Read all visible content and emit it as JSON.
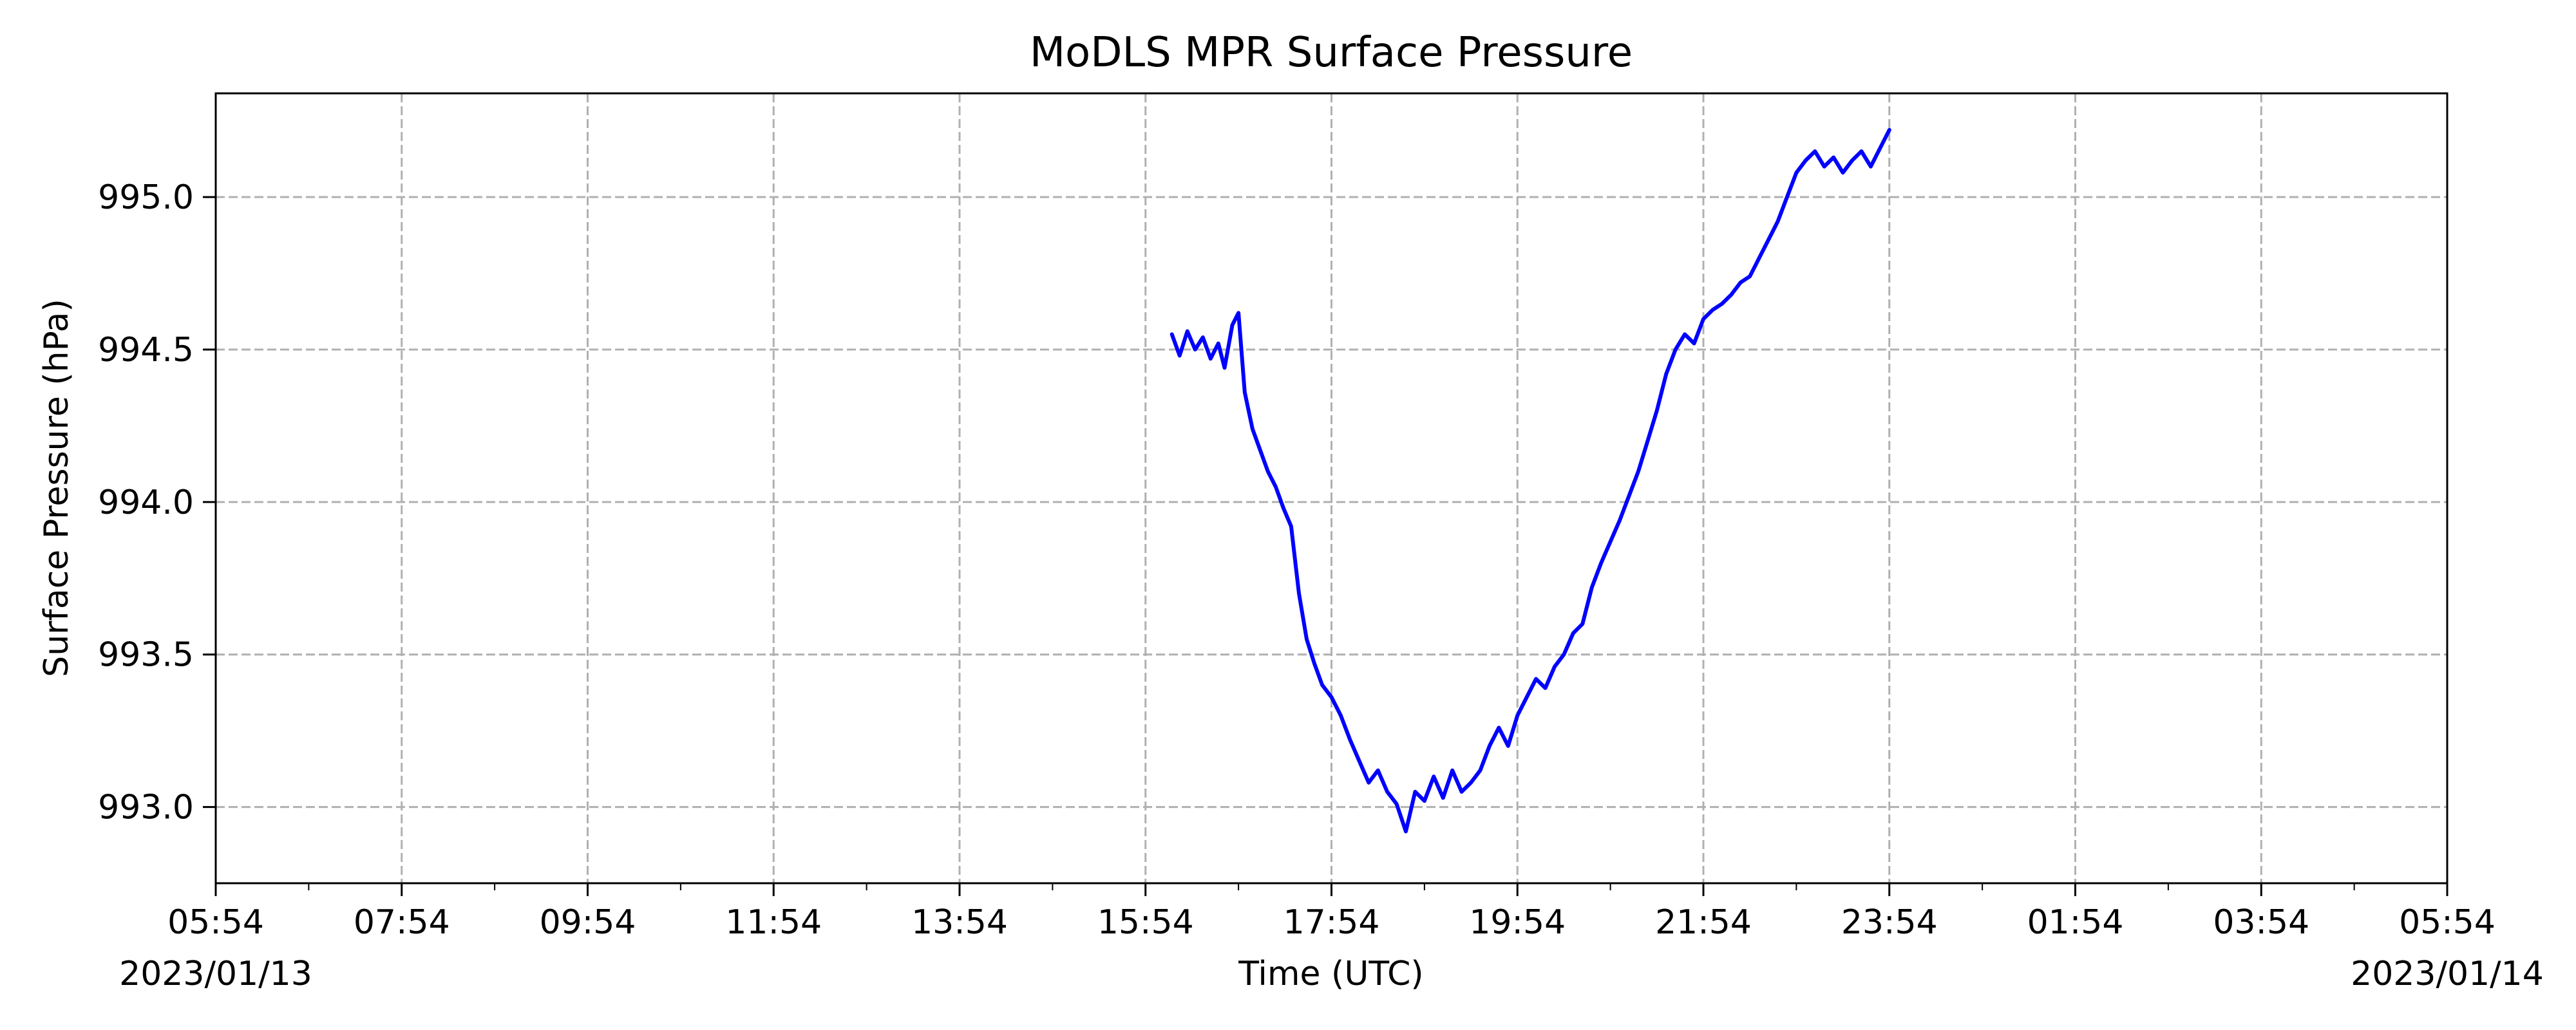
{
  "chart_data": {
    "type": "line",
    "title": "MoDLS MPR Surface Pressure",
    "xlabel": "Time (UTC)",
    "ylabel": "Surface Pressure (hPa)",
    "x_ticks": [
      "05:54",
      "07:54",
      "09:54",
      "11:54",
      "13:54",
      "15:54",
      "17:54",
      "19:54",
      "21:54",
      "23:54",
      "01:54",
      "03:54",
      "05:54"
    ],
    "x_date_labels": {
      "start": "2023/01/13",
      "end": "2023/01/14"
    },
    "xlim": [
      "2023-01-13T05:54",
      "2023-01-14T05:54"
    ],
    "y_ticks": [
      "993.0",
      "993.5",
      "994.0",
      "994.5",
      "995.0"
    ],
    "ylim": [
      992.75,
      995.34
    ],
    "grid": true,
    "line_color": "#0000ff",
    "series": [
      {
        "x": [
          "2023-01-13T16:11",
          "2023-01-13T16:16",
          "2023-01-13T16:21",
          "2023-01-13T16:26",
          "2023-01-13T16:31",
          "2023-01-13T16:36",
          "2023-01-13T16:41",
          "2023-01-13T16:45",
          "2023-01-13T16:50",
          "2023-01-13T16:54",
          "2023-01-13T16:58",
          "2023-01-13T17:03",
          "2023-01-13T17:08",
          "2023-01-13T17:13",
          "2023-01-13T17:18",
          "2023-01-13T17:23",
          "2023-01-13T17:28",
          "2023-01-13T17:33",
          "2023-01-13T17:38",
          "2023-01-13T17:43",
          "2023-01-13T17:48",
          "2023-01-13T17:54",
          "2023-01-13T18:00",
          "2023-01-13T18:06",
          "2023-01-13T18:12",
          "2023-01-13T18:18",
          "2023-01-13T18:24",
          "2023-01-13T18:30",
          "2023-01-13T18:36",
          "2023-01-13T18:42",
          "2023-01-13T18:48",
          "2023-01-13T18:54",
          "2023-01-13T19:00",
          "2023-01-13T19:06",
          "2023-01-13T19:12",
          "2023-01-13T19:18",
          "2023-01-13T19:24",
          "2023-01-13T19:30",
          "2023-01-13T19:36",
          "2023-01-13T19:42",
          "2023-01-13T19:48",
          "2023-01-13T19:54",
          "2023-01-13T20:00",
          "2023-01-13T20:06",
          "2023-01-13T20:12",
          "2023-01-13T20:18",
          "2023-01-13T20:24",
          "2023-01-13T20:30",
          "2023-01-13T20:36",
          "2023-01-13T20:42",
          "2023-01-13T20:48",
          "2023-01-13T20:54",
          "2023-01-13T21:00",
          "2023-01-13T21:06",
          "2023-01-13T21:12",
          "2023-01-13T21:18",
          "2023-01-13T21:24",
          "2023-01-13T21:30",
          "2023-01-13T21:36",
          "2023-01-13T21:42",
          "2023-01-13T21:48",
          "2023-01-13T21:54",
          "2023-01-13T22:00",
          "2023-01-13T22:06",
          "2023-01-13T22:12",
          "2023-01-13T22:18",
          "2023-01-13T22:24",
          "2023-01-13T22:30",
          "2023-01-13T22:36",
          "2023-01-13T22:42",
          "2023-01-13T22:48",
          "2023-01-13T22:54",
          "2023-01-13T23:00",
          "2023-01-13T23:06",
          "2023-01-13T23:12",
          "2023-01-13T23:18",
          "2023-01-13T23:24",
          "2023-01-13T23:30",
          "2023-01-13T23:36",
          "2023-01-13T23:42",
          "2023-01-13T23:48",
          "2023-01-13T23:54"
        ],
        "values": [
          994.55,
          994.48,
          994.56,
          994.5,
          994.54,
          994.47,
          994.52,
          994.44,
          994.58,
          994.62,
          994.36,
          994.24,
          994.17,
          994.1,
          994.05,
          993.98,
          993.92,
          993.7,
          993.55,
          993.47,
          993.4,
          993.36,
          993.3,
          993.22,
          993.15,
          993.08,
          993.12,
          993.05,
          993.01,
          992.92,
          993.05,
          993.02,
          993.1,
          993.03,
          993.12,
          993.05,
          993.08,
          993.12,
          993.2,
          993.26,
          993.2,
          993.3,
          993.36,
          993.42,
          993.39,
          993.46,
          993.5,
          993.57,
          993.6,
          993.72,
          993.8,
          993.87,
          993.94,
          994.02,
          994.1,
          994.2,
          994.3,
          994.42,
          994.5,
          994.55,
          994.52,
          994.6,
          994.63,
          994.65,
          994.68,
          994.72,
          994.74,
          994.8,
          994.86,
          994.92,
          995.0,
          995.08,
          995.12,
          995.15,
          995.1,
          995.13,
          995.08,
          995.12,
          995.15,
          995.1,
          995.16,
          995.22
        ]
      }
    ]
  }
}
